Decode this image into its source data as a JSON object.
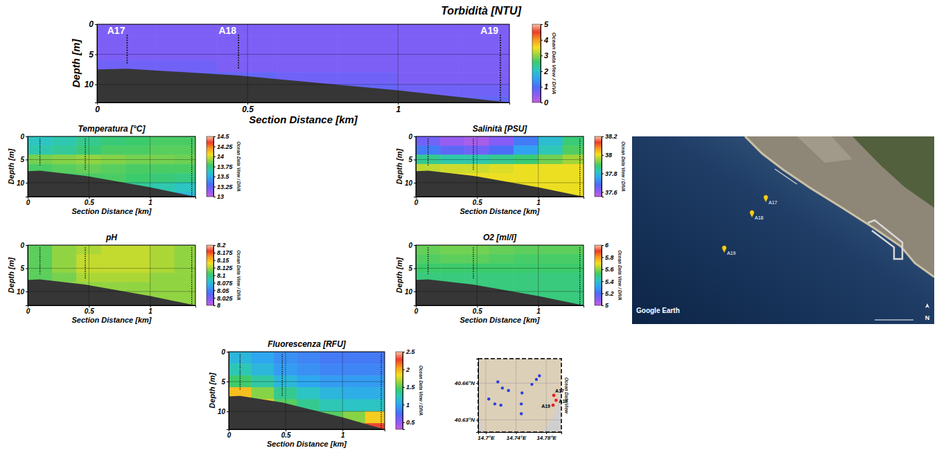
{
  "chart_data": [
    {
      "type": "heatmap",
      "title": "Torbidità [NTU]",
      "x_label": "Section Distance [km]",
      "y_label": "Depth [m]",
      "xlim": [
        0,
        1.37
      ],
      "xticks": [
        0,
        0.5,
        1
      ],
      "ylim": [
        0,
        13
      ],
      "yticks": [
        0,
        5,
        10
      ],
      "grid": true,
      "x_edges": [
        0,
        0.2,
        0.4,
        0.6,
        0.8,
        1,
        1.2,
        1.4
      ],
      "depth_edges": [
        0,
        2,
        4,
        6,
        8,
        10,
        12,
        14
      ],
      "cells": [
        [
          0.6,
          0.6,
          0.6,
          0.6,
          0.6,
          0.6,
          0.6
        ],
        [
          0.6,
          0.6,
          0.6,
          0.6,
          0.6,
          0.6,
          0.6
        ],
        [
          0.6,
          0.6,
          0.6,
          0.6,
          0.6,
          0.6,
          0.6
        ],
        [
          0.7,
          0.7,
          0.6,
          0.6,
          0.6,
          0.6,
          0.6
        ],
        [
          0.8,
          0.8,
          0.8,
          0.7,
          0.7,
          0.6,
          0.6
        ],
        [
          0.8,
          0.8,
          0.8,
          0.8,
          0.8,
          0.7,
          0.7
        ],
        [
          0.8,
          0.8,
          0.8,
          0.8,
          0.8,
          0.8,
          0.8
        ]
      ],
      "colorbar": {
        "range": [
          0,
          5
        ],
        "ticks": [
          0,
          1,
          2,
          3,
          4,
          5
        ]
      },
      "annotation": "Ocean Data View / DIVA",
      "stations": {
        "names": [
          "A17",
          "A18",
          "A19"
        ],
        "x": [
          0.1,
          0.47,
          1.34
        ],
        "max_depth": [
          6.5,
          7.5,
          12.8
        ]
      },
      "bottom": {
        "x": [
          0,
          0.1,
          0.47,
          1,
          1.37
        ],
        "depth": [
          7.5,
          7.4,
          8.5,
          11,
          13
        ]
      }
    },
    {
      "type": "heatmap",
      "title": "Temperatura [°C]",
      "x_label": "Section Distance [km]",
      "y_label": "Depth [m]",
      "xlim": [
        0,
        1.37
      ],
      "xticks": [
        0,
        0.5,
        1
      ],
      "ylim": [
        0,
        13
      ],
      "yticks": [
        0,
        5,
        10
      ],
      "grid": true,
      "x_edges": [
        0,
        0.2,
        0.4,
        0.6,
        0.8,
        1,
        1.2,
        1.4
      ],
      "depth_edges": [
        0,
        2,
        4,
        6,
        8,
        10,
        12,
        14
      ],
      "cells": [
        [
          13.62,
          13.66,
          13.72,
          13.76,
          13.78,
          13.8,
          13.8
        ],
        [
          13.66,
          13.7,
          13.76,
          13.8,
          13.8,
          13.82,
          13.82
        ],
        [
          13.86,
          13.88,
          13.9,
          13.88,
          13.86,
          13.86,
          13.85
        ],
        [
          13.8,
          13.82,
          13.84,
          13.82,
          13.8,
          13.8,
          13.8
        ],
        [
          13.78,
          13.78,
          13.8,
          13.8,
          13.78,
          13.76,
          13.74
        ],
        [
          13.75,
          13.75,
          13.75,
          13.72,
          13.7,
          13.66,
          13.62
        ],
        [
          13.7,
          13.7,
          13.7,
          13.68,
          13.64,
          13.6,
          13.56
        ]
      ],
      "colorbar": {
        "range": [
          13,
          14.5
        ],
        "ticks": [
          13,
          13.25,
          13.5,
          13.75,
          14,
          14.25,
          14.5
        ]
      },
      "annotation": "Ocean Data View / DIVA",
      "stations": {
        "x": [
          0.1,
          0.47,
          1.34
        ],
        "max_depth": [
          6.5,
          7.5,
          12.8
        ]
      },
      "bottom": {
        "x": [
          0,
          0.1,
          0.47,
          1,
          1.37
        ],
        "depth": [
          7.5,
          7.4,
          8.5,
          11,
          13
        ]
      }
    },
    {
      "type": "heatmap",
      "title": "Salinità [PSU]",
      "x_label": "Section Distance [km]",
      "y_label": "Depth [m]",
      "xlim": [
        0,
        1.37
      ],
      "xticks": [
        0,
        0.5,
        1
      ],
      "ylim": [
        0,
        13
      ],
      "yticks": [
        0,
        5,
        10
      ],
      "grid": true,
      "x_edges": [
        0,
        0.2,
        0.4,
        0.6,
        0.8,
        1,
        1.2,
        1.4
      ],
      "depth_edges": [
        0,
        2,
        4,
        6,
        8,
        10,
        12,
        14
      ],
      "cells": [
        [
          37.64,
          37.6,
          37.58,
          37.62,
          37.7,
          37.8,
          37.88
        ],
        [
          37.7,
          37.66,
          37.64,
          37.68,
          37.75,
          37.83,
          37.9
        ],
        [
          37.86,
          37.84,
          37.84,
          37.86,
          37.88,
          37.92,
          37.95
        ],
        [
          37.97,
          37.98,
          37.98,
          37.99,
          38,
          38,
          38
        ],
        [
          38,
          38,
          38,
          38,
          38,
          38,
          38
        ],
        [
          38,
          38,
          38,
          38,
          38,
          38,
          38
        ],
        [
          38,
          38,
          38,
          38,
          38,
          38,
          38
        ]
      ],
      "colorbar": {
        "range": [
          37.55,
          38.2
        ],
        "ticks": [
          37.6,
          37.8,
          38,
          38.2
        ]
      },
      "annotation": "Ocean Data View / DIVA",
      "stations": {
        "x": [
          0.1,
          0.47,
          1.34
        ],
        "max_depth": [
          6.5,
          7.5,
          12.8
        ]
      },
      "bottom": {
        "x": [
          0,
          0.1,
          0.47,
          1,
          1.37
        ],
        "depth": [
          7.5,
          7.4,
          8.5,
          11,
          13
        ]
      }
    },
    {
      "type": "heatmap",
      "title": "pH",
      "x_label": "Section Distance [km]",
      "y_label": "Depth [m]",
      "xlim": [
        0,
        1.37
      ],
      "xticks": [
        0,
        0.5,
        1
      ],
      "ylim": [
        0,
        13
      ],
      "yticks": [
        0,
        5,
        10
      ],
      "grid": true,
      "x_edges": [
        0,
        0.2,
        0.4,
        0.6,
        0.8,
        1,
        1.2,
        1.4
      ],
      "depth_edges": [
        0,
        2,
        4,
        6,
        8,
        10,
        12,
        14
      ],
      "cells": [
        [
          8.11,
          8.12,
          8.125,
          8.13,
          8.13,
          8.125,
          8.12
        ],
        [
          8.11,
          8.12,
          8.13,
          8.13,
          8.13,
          8.125,
          8.12
        ],
        [
          8.11,
          8.12,
          8.13,
          8.13,
          8.13,
          8.125,
          8.12
        ],
        [
          8.11,
          8.115,
          8.125,
          8.125,
          8.125,
          8.12,
          8.12
        ],
        [
          8.12,
          8.12,
          8.12,
          8.12,
          8.12,
          8.12,
          8.12
        ],
        [
          8.12,
          8.12,
          8.12,
          8.12,
          8.12,
          8.12,
          8.12
        ],
        [
          8.12,
          8.12,
          8.12,
          8.12,
          8.12,
          8.12,
          8.12
        ]
      ],
      "colorbar": {
        "range": [
          8,
          8.2
        ],
        "ticks": [
          8,
          8.025,
          8.05,
          8.075,
          8.1,
          8.125,
          8.15,
          8.175,
          8.2
        ]
      },
      "annotation": "Ocean Data View / DIVA",
      "stations": {
        "x": [
          0.1,
          0.47,
          1.34
        ],
        "max_depth": [
          6.5,
          7.5,
          12.8
        ]
      },
      "bottom": {
        "x": [
          0,
          0.1,
          0.47,
          1,
          1.37
        ],
        "depth": [
          7.5,
          7.4,
          8.5,
          11,
          13
        ]
      }
    },
    {
      "type": "heatmap",
      "title": "O2 [ml/l]",
      "x_label": "Section Distance [km]",
      "y_label": "Depth [m]",
      "xlim": [
        0,
        1.37
      ],
      "xticks": [
        0,
        0.5,
        1
      ],
      "ylim": [
        0,
        13
      ],
      "yticks": [
        0,
        5,
        10
      ],
      "grid": true,
      "x_edges": [
        0,
        0.2,
        0.4,
        0.6,
        0.8,
        1,
        1.2,
        1.4
      ],
      "depth_edges": [
        0,
        2,
        4,
        6,
        8,
        10,
        12,
        14
      ],
      "cells": [
        [
          5.56,
          5.57,
          5.57,
          5.56,
          5.55,
          5.55,
          5.55
        ],
        [
          5.54,
          5.55,
          5.55,
          5.54,
          5.53,
          5.53,
          5.53
        ],
        [
          5.52,
          5.52,
          5.52,
          5.52,
          5.52,
          5.52,
          5.52
        ],
        [
          5.5,
          5.5,
          5.5,
          5.5,
          5.5,
          5.5,
          5.5
        ],
        [
          5.5,
          5.5,
          5.5,
          5.5,
          5.5,
          5.5,
          5.5
        ],
        [
          5.5,
          5.5,
          5.5,
          5.5,
          5.5,
          5.5,
          5.5
        ],
        [
          5.5,
          5.5,
          5.5,
          5.5,
          5.5,
          5.5,
          5.5
        ]
      ],
      "colorbar": {
        "range": [
          5,
          6
        ],
        "ticks": [
          5,
          5.2,
          5.4,
          5.6,
          5.8,
          6
        ]
      },
      "annotation": "Ocean Data View / DIVA",
      "stations": {
        "x": [
          0.1,
          0.47,
          1.34
        ],
        "max_depth": [
          6.5,
          7.5,
          12.8
        ]
      },
      "bottom": {
        "x": [
          0,
          0.1,
          0.47,
          1,
          1.37
        ],
        "depth": [
          7.5,
          7.4,
          8.5,
          11,
          13
        ]
      }
    },
    {
      "type": "heatmap",
      "title": "Fluorescenza [RFU]",
      "x_label": "Section Distance [km]",
      "y_label": "Depth [m]",
      "xlim": [
        0,
        1.37
      ],
      "xticks": [
        0,
        0.5,
        1
      ],
      "ylim": [
        0,
        13
      ],
      "yticks": [
        0,
        5,
        10
      ],
      "grid": true,
      "x_edges": [
        0,
        0.2,
        0.4,
        0.6,
        0.8,
        1,
        1.2,
        1.4
      ],
      "depth_edges": [
        0,
        2,
        4,
        6,
        8,
        10,
        12,
        14
      ],
      "cells": [
        [
          1.1,
          1,
          0.9,
          0.85,
          0.8,
          0.8,
          0.8
        ],
        [
          1.25,
          1.1,
          0.95,
          0.9,
          0.85,
          0.85,
          0.85
        ],
        [
          1.45,
          1.3,
          1.1,
          1,
          0.95,
          0.95,
          0.95
        ],
        [
          1.95,
          1.6,
          1.35,
          1.2,
          1.1,
          1.05,
          1.05
        ],
        [
          2.1,
          1.9,
          1.5,
          1.35,
          1.25,
          1.2,
          1.2
        ],
        [
          2.1,
          2,
          1.8,
          1.6,
          1.5,
          1.6,
          1.9
        ],
        [
          2.1,
          2,
          2,
          1.9,
          1.9,
          2.1,
          2.3
        ]
      ],
      "colorbar": {
        "range": [
          0.3,
          2.5
        ],
        "ticks": [
          0.5,
          1,
          1.5,
          2,
          2.5
        ]
      },
      "annotation": "Ocean Data View / DIVA",
      "stations": {
        "x": [
          0.1,
          0.47,
          1.34
        ],
        "max_depth": [
          6.5,
          7.5,
          12.8
        ]
      },
      "bottom": {
        "x": [
          0,
          0.1,
          0.47,
          1,
          1.37
        ],
        "depth": [
          7.5,
          7.4,
          8.5,
          11,
          13
        ]
      }
    },
    {
      "type": "map",
      "xlim": [
        14.69,
        14.8
      ],
      "ylim": [
        40.62,
        40.68
      ],
      "xticks": [
        {
          "value": 14.7,
          "label": "14.7°E"
        },
        {
          "value": 14.74,
          "label": "14.74°E"
        },
        {
          "value": 14.78,
          "label": "14.78°E"
        }
      ],
      "yticks": [
        {
          "value": 40.63,
          "label": "40.63°N"
        },
        {
          "value": 40.66,
          "label": "40.66°N"
        }
      ],
      "grid": true,
      "annotation": "Ocean Data View",
      "points": {
        "x": [
          14.716,
          14.722,
          14.73,
          14.704,
          14.712,
          14.72,
          14.748,
          14.747,
          14.747,
          14.761,
          14.767,
          14.771
        ],
        "y": [
          40.661,
          40.656,
          40.654,
          40.647,
          40.643,
          40.642,
          40.652,
          40.643,
          40.635,
          40.659,
          40.663,
          40.666
        ],
        "color": "#2b3fe0"
      },
      "stations": {
        "names": [
          "A17",
          "A18",
          "A19"
        ],
        "x": [
          14.79,
          14.793,
          14.789
        ],
        "y": [
          40.65,
          40.646,
          40.642
        ],
        "color": "#e8202a"
      }
    }
  ],
  "satellite": {
    "source": "Google Earth",
    "north": "N",
    "labels": [
      "A17",
      "A18",
      "A19"
    ]
  }
}
